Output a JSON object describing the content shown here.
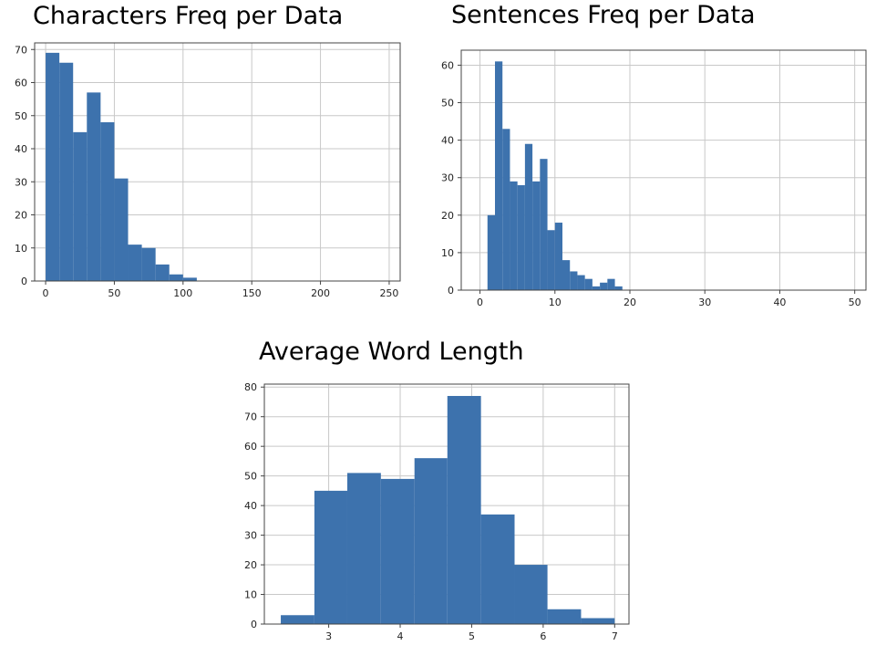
{
  "chart_data": [
    {
      "type": "bar",
      "title": "Characters Freq per Data",
      "xlim": [
        -8,
        258
      ],
      "ylim": [
        0,
        72
      ],
      "xticks": [
        0,
        50,
        100,
        150,
        200,
        250
      ],
      "yticks": [
        0,
        10,
        20,
        30,
        40,
        50,
        60,
        70
      ],
      "grid": true,
      "bin_edges": [
        0,
        10,
        20,
        30,
        40,
        50,
        60,
        70,
        80,
        90,
        100,
        110
      ],
      "values": [
        69,
        66,
        45,
        57,
        48,
        31,
        11,
        10,
        5,
        2,
        1
      ]
    },
    {
      "type": "bar",
      "title": "Sentences Freq per Data",
      "xlim": [
        -2.5,
        51.5
      ],
      "ylim": [
        0,
        64
      ],
      "xticks": [
        0,
        10,
        20,
        30,
        40,
        50
      ],
      "yticks": [
        0,
        10,
        20,
        30,
        40,
        50,
        60
      ],
      "grid": true,
      "bin_edges": [
        1,
        2,
        3,
        4,
        5,
        6,
        7,
        8,
        9,
        10,
        11,
        12,
        13,
        14,
        15,
        16,
        17,
        18,
        19
      ],
      "values": [
        20,
        61,
        43,
        29,
        28,
        39,
        29,
        35,
        16,
        18,
        8,
        5,
        4,
        3,
        1,
        2,
        3,
        1
      ]
    },
    {
      "type": "bar",
      "title": "Average Word Length",
      "xlim": [
        2.1,
        7.2
      ],
      "ylim": [
        0,
        81
      ],
      "xticks": [
        3,
        4,
        5,
        6,
        7
      ],
      "yticks": [
        0,
        10,
        20,
        30,
        40,
        50,
        60,
        70,
        80
      ],
      "grid": true,
      "bin_edges": [
        2.33,
        2.8,
        3.26,
        3.73,
        4.2,
        4.66,
        5.13,
        5.6,
        6.06,
        6.53,
        7.0
      ],
      "values": [
        3,
        45,
        51,
        49,
        56,
        77,
        37,
        20,
        5,
        2
      ]
    }
  ]
}
